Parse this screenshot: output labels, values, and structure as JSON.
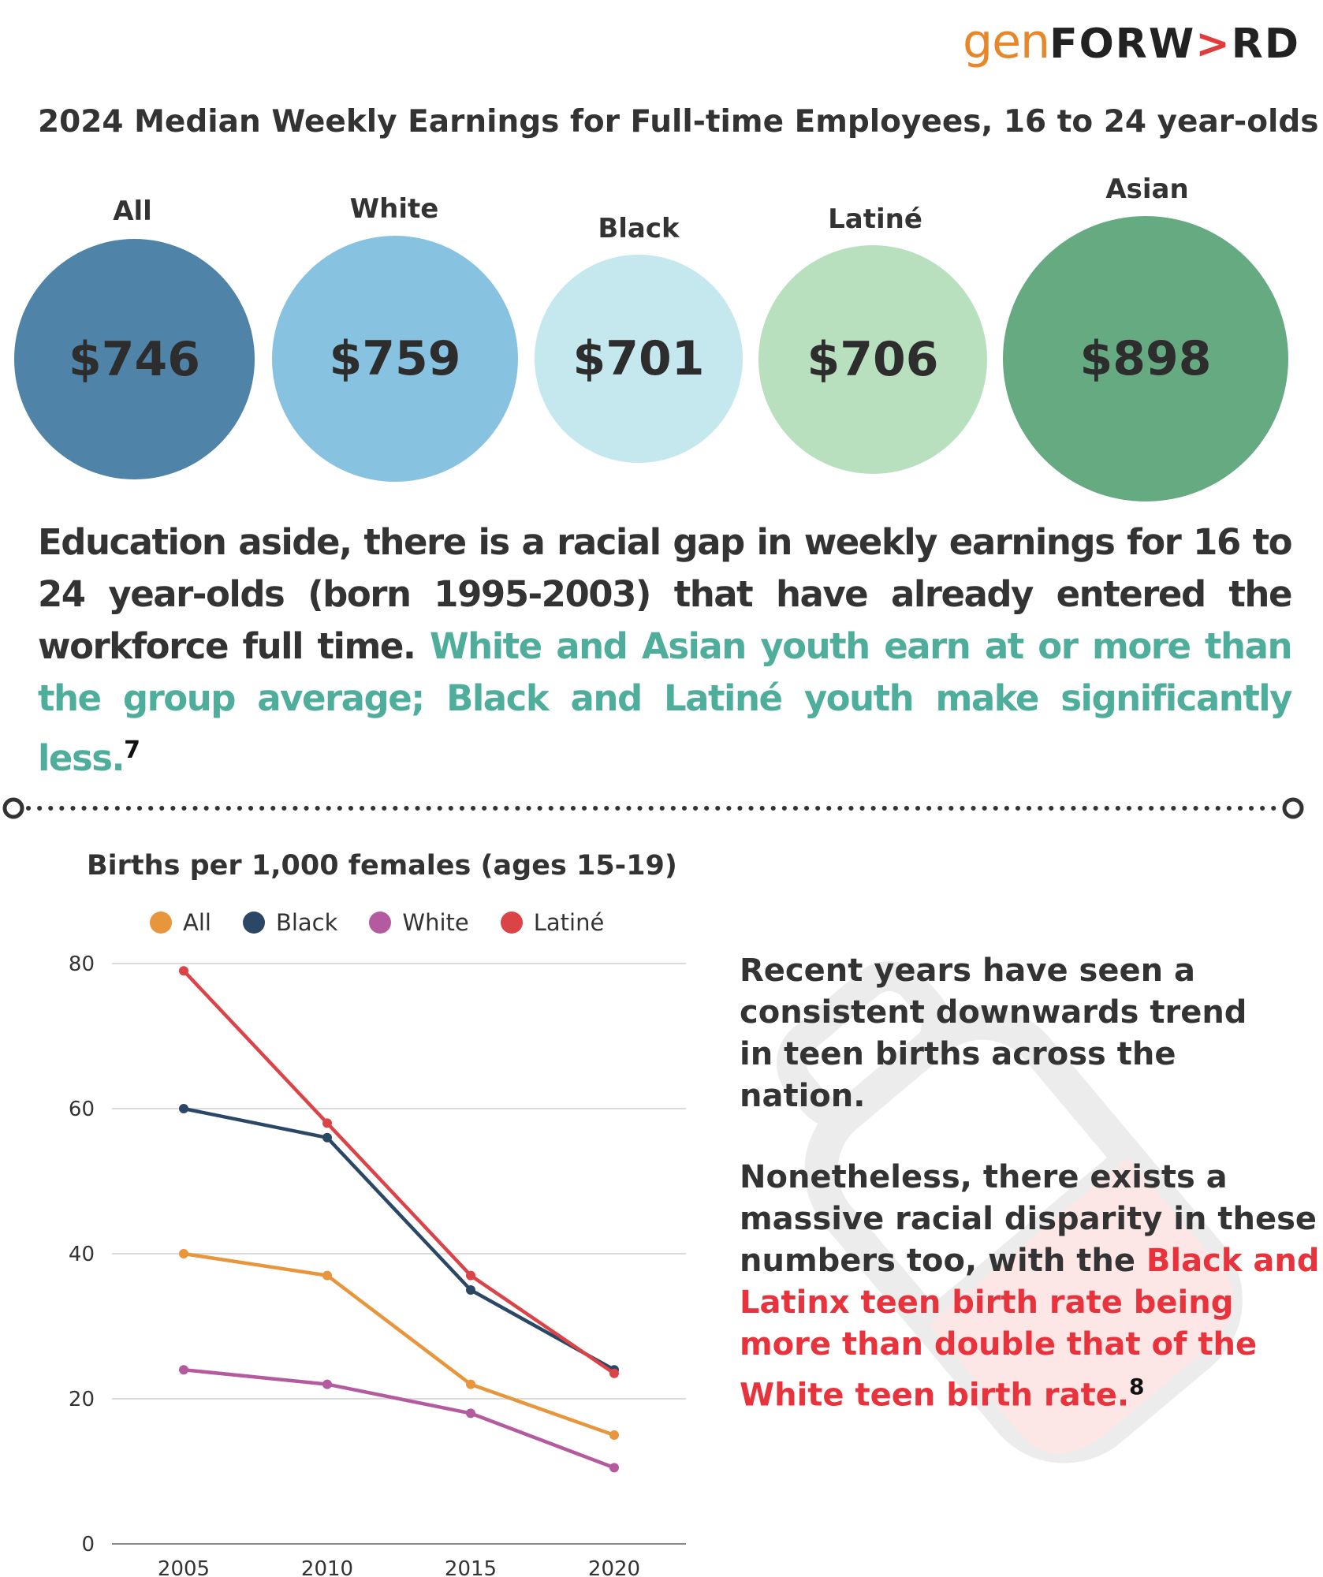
{
  "logo": {
    "gen": "gen",
    "forward_a": "FORW",
    "forward_arrow": ">",
    "forward_b": "RD"
  },
  "earnings": {
    "title": "2024 Median Weekly Earnings for Full-time Employees, 16 to 24 year-olds",
    "groups": [
      {
        "label": "All",
        "value": "$746",
        "color": "#4f84a8"
      },
      {
        "label": "White",
        "value": "$759",
        "color": "#87c3e0"
      },
      {
        "label": "Black",
        "value": "$701",
        "color": "#c5e8ee"
      },
      {
        "label": "Latiné",
        "value": "$706",
        "color": "#b8e0bf"
      },
      {
        "label": "Asian",
        "value": "$898",
        "color": "#66aa82"
      }
    ]
  },
  "paragraph": {
    "plain": "Education aside, there is a racial gap in weekly earnings for 16 to 24 year-olds (born 1995-2003) that have already entered the workforce full time.",
    "highlight": "White and Asian youth earn at or more than the group average; Black and Latiné youth make significantly less.",
    "footnote": "7"
  },
  "births_text": {
    "p1": "Recent years have seen a consistent downwards trend in teen births across the nation.",
    "p2_plain": "Nonetheless, there exists a massive racial disparity in these numbers too, with the",
    "p2_red": "Black and Latinx teen birth rate being more than double that of the White teen birth rate.",
    "footnote": "8"
  },
  "chart_data": {
    "type": "line",
    "title": "Births per 1,000 females (ages 15-19)",
    "x": [
      2005,
      2010,
      2015,
      2020
    ],
    "ylim": [
      0,
      80
    ],
    "yticks": [
      0,
      20,
      40,
      60,
      80
    ],
    "grid": true,
    "legend_position": "top",
    "series": [
      {
        "name": "All",
        "color": "#e8963c",
        "values": [
          40,
          37,
          22,
          15
        ]
      },
      {
        "name": "Black",
        "color": "#2b4766",
        "values": [
          60,
          56,
          35,
          24
        ]
      },
      {
        "name": "White",
        "color": "#b45ba0",
        "values": [
          24,
          22,
          18,
          10.5
        ]
      },
      {
        "name": "Latiné",
        "color": "#dc4347",
        "values": [
          79,
          58,
          37,
          23.5
        ]
      }
    ]
  }
}
